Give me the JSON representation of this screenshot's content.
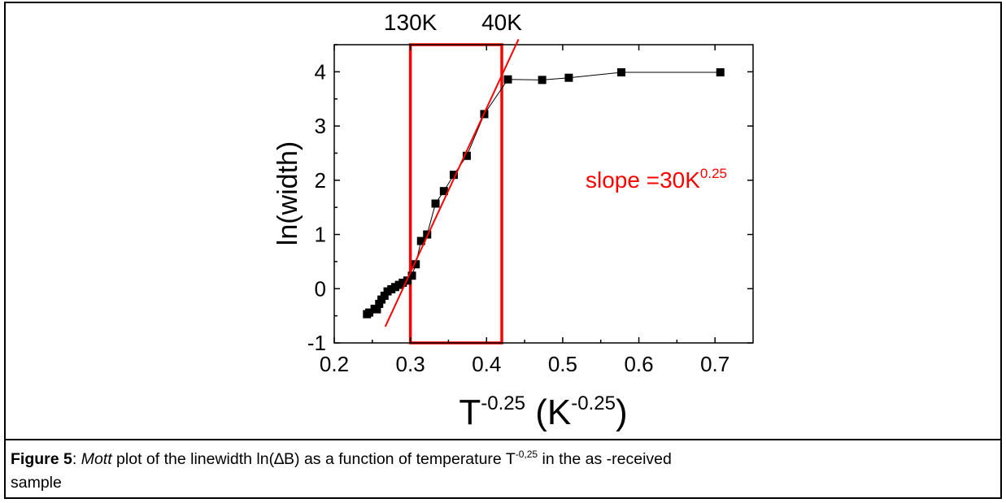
{
  "chart_data": {
    "type": "scatter",
    "xlabel": {
      "base": "T",
      "base_exp": "-0.25",
      "unit_open": " (K",
      "unit_exp": "-0.25",
      "unit_close": ")"
    },
    "ylabel": "ln(width)",
    "xlim": [
      0.2,
      0.75
    ],
    "ylim": [
      -1,
      4.5
    ],
    "xticks": [
      0.2,
      0.3,
      0.4,
      0.5,
      0.6,
      0.7
    ],
    "xtick_labels": [
      "0.2",
      "0.3",
      "0.4",
      "0.5",
      "0.6",
      "0.7"
    ],
    "yticks": [
      -1,
      0,
      1,
      2,
      3,
      4
    ],
    "ytick_labels": [
      "-1",
      "0",
      "1",
      "2",
      "3",
      "4"
    ],
    "series": [
      {
        "marker": "square",
        "color": "#000000",
        "connected": true,
        "x": [
          0.243,
          0.246,
          0.253,
          0.256,
          0.259,
          0.262,
          0.266,
          0.27,
          0.275,
          0.28,
          0.285,
          0.29,
          0.296,
          0.302,
          0.307,
          0.314,
          0.322,
          0.333,
          0.344,
          0.357,
          0.374,
          0.397,
          0.428,
          0.473,
          0.508,
          0.577,
          0.707
        ],
        "y": [
          -0.47,
          -0.44,
          -0.37,
          -0.38,
          -0.28,
          -0.2,
          -0.13,
          -0.05,
          -0.01,
          0.03,
          0.07,
          0.11,
          0.15,
          0.24,
          0.45,
          0.88,
          1.0,
          1.57,
          1.8,
          2.1,
          2.45,
          3.22,
          3.86,
          3.85,
          3.89,
          3.99,
          3.99
        ]
      }
    ],
    "fit_line": {
      "color": "#ff0000",
      "x": [
        0.267,
        0.442
      ],
      "y": [
        -0.7,
        4.6
      ]
    },
    "highlight_box": {
      "color": "#ff0000",
      "x": [
        0.3,
        0.42
      ],
      "y": [
        -1,
        4.5
      ]
    },
    "top_labels": [
      {
        "text": "130K",
        "x": 0.3
      },
      {
        "text": "40K",
        "x": 0.42
      }
    ],
    "annotation": {
      "text": "slope =30K",
      "sup": "0.25",
      "color": "#ff0000",
      "x": 0.53,
      "y": 2.0
    }
  },
  "caption": {
    "label": "Figure 5",
    "sep": ": ",
    "italic": "Mott",
    "text1": " plot of the linewidth ln(",
    "symbol": "∆",
    "text2": "B) as a function of temperature T",
    "sup": "-0,25",
    "text3": " in the as -received",
    "text4": "sample"
  }
}
